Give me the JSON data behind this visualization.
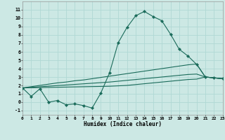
{
  "xlabel": "Humidex (Indice chaleur)",
  "x": [
    0,
    1,
    2,
    3,
    4,
    5,
    6,
    7,
    8,
    9,
    10,
    11,
    12,
    13,
    14,
    15,
    16,
    17,
    18,
    19,
    20,
    21,
    22,
    23
  ],
  "line_main": [
    1.7,
    0.7,
    1.6,
    0.0,
    0.2,
    -0.3,
    -0.2,
    -0.4,
    -0.7,
    1.1,
    3.5,
    7.1,
    8.9,
    10.3,
    10.8,
    10.2,
    9.7,
    8.1,
    6.3,
    5.5,
    4.5,
    3.0,
    2.9,
    2.8
  ],
  "line_upper": [
    1.7,
    1.85,
    2.0,
    2.15,
    2.3,
    2.4,
    2.55,
    2.65,
    2.8,
    2.95,
    3.1,
    3.25,
    3.4,
    3.55,
    3.7,
    3.85,
    4.0,
    4.15,
    4.3,
    4.45,
    4.55,
    3.0,
    2.9,
    2.8
  ],
  "line_mid": [
    1.7,
    1.77,
    1.84,
    1.91,
    1.98,
    2.05,
    2.12,
    2.19,
    2.26,
    2.33,
    2.4,
    2.5,
    2.6,
    2.7,
    2.8,
    2.9,
    3.0,
    3.1,
    3.2,
    3.3,
    3.35,
    3.0,
    2.9,
    2.8
  ],
  "line_lower": [
    1.7,
    1.72,
    1.74,
    1.76,
    1.78,
    1.8,
    1.82,
    1.84,
    1.86,
    1.88,
    1.9,
    1.95,
    2.0,
    2.1,
    2.2,
    2.3,
    2.4,
    2.5,
    2.6,
    2.7,
    2.75,
    3.0,
    2.9,
    2.8
  ],
  "bg_color": "#cce8e4",
  "grid_color": "#b0d8d4",
  "line_color": "#1a6b5a",
  "xlim": [
    0,
    23
  ],
  "ylim": [
    -1.5,
    12
  ],
  "xticks": [
    0,
    1,
    2,
    3,
    4,
    5,
    6,
    7,
    8,
    9,
    10,
    11,
    12,
    13,
    14,
    15,
    16,
    17,
    18,
    19,
    20,
    21,
    22,
    23
  ],
  "yticks": [
    -1,
    0,
    1,
    2,
    3,
    4,
    5,
    6,
    7,
    8,
    9,
    10,
    11
  ]
}
